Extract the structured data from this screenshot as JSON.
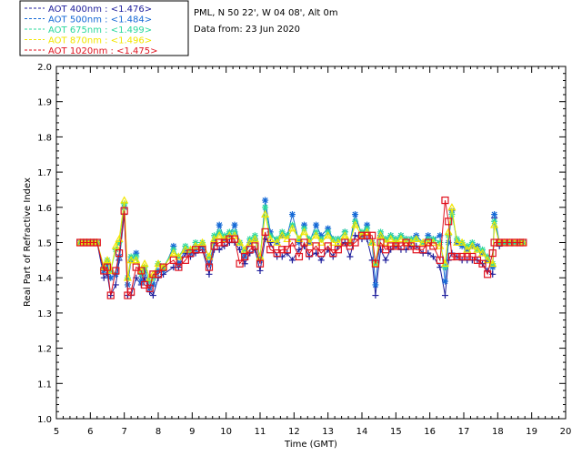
{
  "header": {
    "site_line": "PML, N 50 22', W 04 08', Alt 0m",
    "date_line": "Data from: 23 Jun 2020"
  },
  "chart_data": {
    "type": "line",
    "xlabel": "Time (GMT)",
    "ylabel": "Real Part of Refractive Index",
    "xlim": [
      5,
      20
    ],
    "ylim": [
      1.0,
      2.0
    ],
    "xticks": [
      "5",
      "6",
      "7",
      "8",
      "9",
      "10",
      "11",
      "12",
      "13",
      "14",
      "15",
      "16",
      "17",
      "18",
      "19",
      "20"
    ],
    "yticks": [
      "1.0",
      "1.1",
      "1.2",
      "1.3",
      "1.4",
      "1.5",
      "1.6",
      "1.7",
      "1.8",
      "1.9",
      "2.0"
    ],
    "grid": false,
    "legend_position": "top-left-outside",
    "x": [
      5.7,
      5.8,
      5.9,
      6.0,
      6.1,
      6.2,
      6.4,
      6.5,
      6.6,
      6.75,
      6.85,
      7.0,
      7.1,
      7.2,
      7.35,
      7.5,
      7.6,
      7.75,
      7.85,
      8.0,
      8.15,
      8.45,
      8.6,
      8.8,
      8.95,
      9.1,
      9.3,
      9.5,
      9.65,
      9.8,
      9.95,
      10.1,
      10.25,
      10.4,
      10.55,
      10.7,
      10.85,
      11.0,
      11.15,
      11.3,
      11.5,
      11.65,
      11.8,
      11.95,
      12.15,
      12.3,
      12.45,
      12.65,
      12.8,
      13.0,
      13.15,
      13.3,
      13.5,
      13.65,
      13.8,
      14.0,
      14.15,
      14.3,
      14.4,
      14.55,
      14.7,
      14.85,
      15.0,
      15.15,
      15.3,
      15.45,
      15.6,
      15.8,
      15.95,
      16.1,
      16.3,
      16.45,
      16.55,
      16.65,
      16.8,
      16.95,
      17.1,
      17.25,
      17.4,
      17.55,
      17.7,
      17.85,
      17.9,
      18.05,
      18.2,
      18.35,
      18.5,
      18.65,
      18.75
    ],
    "series": [
      {
        "name": "AOT  400nm : <1.476>",
        "color": "#1e1e9c",
        "marker": "plus",
        "values": [
          1.5,
          1.5,
          1.5,
          1.5,
          1.5,
          1.5,
          1.4,
          1.41,
          1.35,
          1.38,
          1.45,
          1.58,
          1.35,
          1.35,
          1.4,
          1.38,
          1.4,
          1.36,
          1.35,
          1.4,
          1.41,
          1.43,
          1.43,
          1.47,
          1.46,
          1.47,
          1.48,
          1.41,
          1.48,
          1.48,
          1.49,
          1.5,
          1.5,
          1.48,
          1.44,
          1.47,
          1.48,
          1.42,
          1.51,
          1.5,
          1.46,
          1.46,
          1.47,
          1.45,
          1.48,
          1.49,
          1.46,
          1.47,
          1.45,
          1.48,
          1.46,
          1.49,
          1.5,
          1.46,
          1.52,
          1.51,
          1.51,
          1.45,
          1.35,
          1.48,
          1.45,
          1.48,
          1.49,
          1.48,
          1.48,
          1.49,
          1.49,
          1.47,
          1.47,
          1.46,
          1.43,
          1.35,
          1.45,
          1.47,
          1.46,
          1.45,
          1.45,
          1.45,
          1.45,
          1.44,
          1.42,
          1.41,
          1.57,
          1.49,
          1.5,
          1.5,
          1.5,
          1.5,
          1.5
        ]
      },
      {
        "name": "AOT  500nm : <1.484>",
        "color": "#1569d6",
        "marker": "asterisk",
        "values": [
          1.5,
          1.5,
          1.5,
          1.5,
          1.5,
          1.5,
          1.42,
          1.44,
          1.4,
          1.41,
          1.46,
          1.6,
          1.38,
          1.45,
          1.47,
          1.39,
          1.42,
          1.37,
          1.38,
          1.42,
          1.42,
          1.49,
          1.44,
          1.48,
          1.47,
          1.48,
          1.49,
          1.44,
          1.5,
          1.55,
          1.51,
          1.52,
          1.55,
          1.5,
          1.46,
          1.5,
          1.51,
          1.45,
          1.62,
          1.53,
          1.5,
          1.52,
          1.52,
          1.58,
          1.5,
          1.55,
          1.5,
          1.55,
          1.52,
          1.54,
          1.51,
          1.51,
          1.53,
          1.5,
          1.58,
          1.52,
          1.55,
          1.5,
          1.38,
          1.52,
          1.51,
          1.52,
          1.51,
          1.52,
          1.51,
          1.51,
          1.52,
          1.5,
          1.52,
          1.51,
          1.52,
          1.39,
          1.5,
          1.59,
          1.5,
          1.49,
          1.48,
          1.49,
          1.49,
          1.47,
          1.45,
          1.43,
          1.58,
          1.5,
          1.5,
          1.5,
          1.5,
          1.5,
          1.5
        ]
      },
      {
        "name": "AOT  675nm : <1.499>",
        "color": "#2bd89c",
        "marker": "asterisk",
        "values": [
          1.5,
          1.5,
          1.5,
          1.5,
          1.5,
          1.5,
          1.43,
          1.45,
          1.42,
          1.48,
          1.5,
          1.61,
          1.4,
          1.46,
          1.46,
          1.41,
          1.43,
          1.39,
          1.4,
          1.44,
          1.43,
          1.48,
          1.46,
          1.49,
          1.48,
          1.5,
          1.5,
          1.46,
          1.52,
          1.53,
          1.52,
          1.53,
          1.53,
          1.5,
          1.48,
          1.51,
          1.52,
          1.46,
          1.6,
          1.52,
          1.51,
          1.53,
          1.52,
          1.55,
          1.51,
          1.54,
          1.51,
          1.53,
          1.51,
          1.53,
          1.51,
          1.51,
          1.53,
          1.5,
          1.56,
          1.53,
          1.54,
          1.5,
          1.44,
          1.53,
          1.51,
          1.52,
          1.51,
          1.52,
          1.51,
          1.51,
          1.51,
          1.5,
          1.51,
          1.51,
          1.5,
          1.43,
          1.52,
          1.58,
          1.51,
          1.5,
          1.49,
          1.5,
          1.48,
          1.48,
          1.46,
          1.44,
          1.56,
          1.5,
          1.5,
          1.5,
          1.5,
          1.5,
          1.5
        ]
      },
      {
        "name": "AOT  870nm : <1.496>",
        "color": "#f2e600",
        "marker": "triangle",
        "values": [
          1.5,
          1.5,
          1.5,
          1.5,
          1.5,
          1.5,
          1.43,
          1.45,
          1.42,
          1.49,
          1.51,
          1.62,
          1.4,
          1.45,
          1.45,
          1.42,
          1.44,
          1.4,
          1.41,
          1.44,
          1.43,
          1.47,
          1.46,
          1.48,
          1.48,
          1.49,
          1.5,
          1.46,
          1.51,
          1.52,
          1.51,
          1.52,
          1.52,
          1.5,
          1.48,
          1.5,
          1.51,
          1.46,
          1.58,
          1.51,
          1.5,
          1.52,
          1.51,
          1.54,
          1.51,
          1.53,
          1.5,
          1.52,
          1.5,
          1.52,
          1.5,
          1.5,
          1.52,
          1.5,
          1.55,
          1.52,
          1.53,
          1.5,
          1.44,
          1.52,
          1.5,
          1.51,
          1.5,
          1.51,
          1.5,
          1.5,
          1.51,
          1.5,
          1.5,
          1.5,
          1.49,
          1.44,
          1.53,
          1.6,
          1.5,
          1.5,
          1.48,
          1.49,
          1.48,
          1.47,
          1.45,
          1.44,
          1.55,
          1.5,
          1.5,
          1.5,
          1.5,
          1.5,
          1.5
        ]
      },
      {
        "name": "AOT 1020nm : <1.475>",
        "color": "#e0121e",
        "marker": "square",
        "values": [
          1.5,
          1.5,
          1.5,
          1.5,
          1.5,
          1.5,
          1.42,
          1.43,
          1.35,
          1.42,
          1.47,
          1.59,
          1.35,
          1.36,
          1.43,
          1.42,
          1.38,
          1.37,
          1.41,
          1.41,
          1.43,
          1.45,
          1.43,
          1.45,
          1.47,
          1.48,
          1.48,
          1.43,
          1.49,
          1.5,
          1.5,
          1.51,
          1.51,
          1.44,
          1.46,
          1.48,
          1.49,
          1.44,
          1.53,
          1.48,
          1.47,
          1.48,
          1.48,
          1.5,
          1.46,
          1.5,
          1.47,
          1.49,
          1.47,
          1.49,
          1.47,
          1.48,
          1.5,
          1.49,
          1.5,
          1.52,
          1.52,
          1.52,
          1.44,
          1.5,
          1.48,
          1.49,
          1.49,
          1.49,
          1.5,
          1.49,
          1.48,
          1.48,
          1.5,
          1.49,
          1.45,
          1.62,
          1.56,
          1.46,
          1.46,
          1.46,
          1.46,
          1.46,
          1.45,
          1.44,
          1.41,
          1.47,
          1.5,
          1.5,
          1.5,
          1.5,
          1.5,
          1.5,
          1.5
        ]
      }
    ]
  }
}
